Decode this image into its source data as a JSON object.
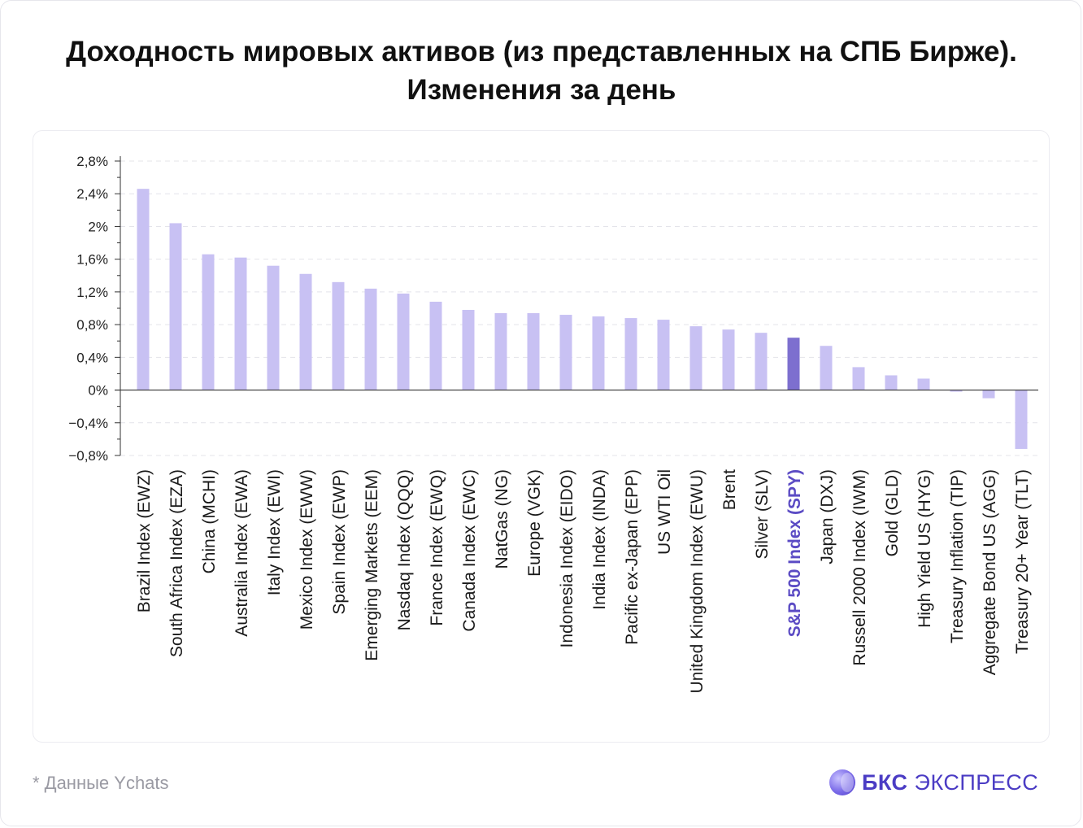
{
  "title": "Доходность мировых активов (из представленных на СПБ Бирже). Изменения за день",
  "footnote": "* Данные Ychats",
  "logo": {
    "brand_bold": "БКС",
    "brand_light": "ЭКСПРЕСС",
    "icon": "bks-logo-icon"
  },
  "colors": {
    "bar": "#c8c1f3",
    "highlight_bar": "#7d6fcf",
    "highlight_label": "#5b4bc4",
    "axis": "#333333",
    "grid": "#e4e4ea"
  },
  "chart_data": {
    "type": "bar",
    "title": "Доходность мировых активов (из представленных на СПБ Бирже). Изменения за день",
    "ylim": [
      -0.8,
      2.8
    ],
    "yticks": [
      "2,8%",
      "2,4%",
      "2%",
      "1,6%",
      "1,2%",
      "0,8%",
      "0,4%",
      "0%",
      "−0,4%",
      "−0,8%"
    ],
    "ytick_values": [
      2.8,
      2.4,
      2.0,
      1.6,
      1.2,
      0.8,
      0.4,
      0.0,
      -0.4,
      -0.8
    ],
    "grid": true,
    "highlight": "S&P 500 Index (SPY)",
    "categories": [
      "Brazil Index (EWZ)",
      "South Africa Index (EZA)",
      "China (MCHI)",
      "Australia Index (EWA)",
      "Italy Index (EWI)",
      "Mexico Index (EWW)",
      "Spain Index (EWP)",
      "Emerging Markets (EEM)",
      "Nasdaq Index (QQQ)",
      "France Index (EWQ)",
      "Canada Index (EWC)",
      "NatGas (NG)",
      "Europe (VGK)",
      "Indonesia Index (EIDO)",
      "India Index (INDA)",
      "Pacific ex-Japan (EPP)",
      "US WTI Oil",
      "United Kingdom Index (EWU)",
      "Brent",
      "Silver (SLV)",
      "S&P 500 Index (SPY)",
      "Japan (DXJ)",
      "Russell 2000 Index (IWM)",
      "Gold (GLD)",
      "High Yield US (HYG)",
      "Treasury Inflation (TIP)",
      "Aggregate Bond US (AGG)",
      "Treasury 20+ Year (TLT)"
    ],
    "values": [
      2.46,
      2.04,
      1.66,
      1.62,
      1.52,
      1.42,
      1.32,
      1.24,
      1.18,
      1.08,
      0.98,
      0.94,
      0.94,
      0.92,
      0.9,
      0.88,
      0.86,
      0.78,
      0.74,
      0.7,
      0.64,
      0.54,
      0.28,
      0.18,
      0.14,
      -0.02,
      -0.1,
      -0.72
    ]
  }
}
